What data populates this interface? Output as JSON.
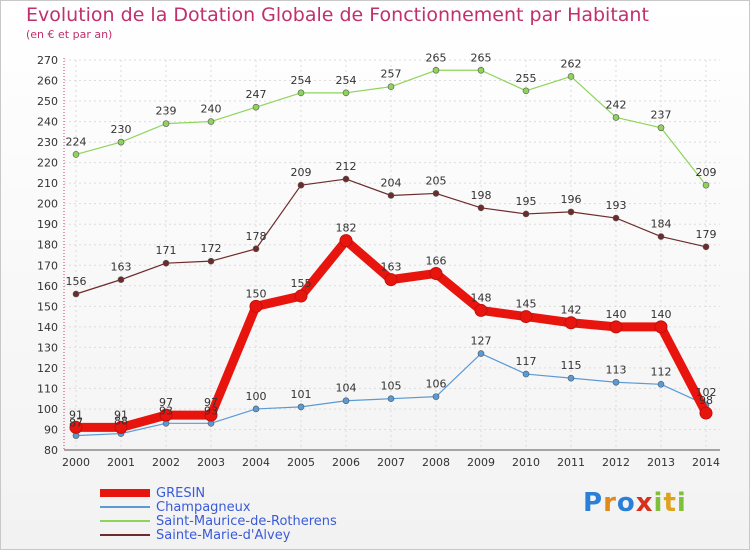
{
  "header": {
    "title": "Evolution de la Dotation Globale de Fonctionnement par Habitant",
    "subtitle": "(en € et par an)"
  },
  "logo": {
    "text": "Proxiti"
  },
  "chart_data": {
    "type": "line",
    "x": [
      "2000",
      "2001",
      "2002",
      "2003",
      "2004",
      "2005",
      "2006",
      "2007",
      "2008",
      "2009",
      "2010",
      "2011",
      "2012",
      "2013",
      "2014"
    ],
    "ylim": [
      80,
      270
    ],
    "yticks": [
      80,
      90,
      100,
      110,
      120,
      130,
      140,
      150,
      160,
      170,
      180,
      190,
      200,
      210,
      220,
      230,
      240,
      250,
      260,
      270
    ],
    "grid": true,
    "legend_position": "bottom-left",
    "series": [
      {
        "name": "GRESIN",
        "color": "#e8150f",
        "values": [
          91,
          91,
          97,
          97,
          150,
          155,
          182,
          163,
          166,
          148,
          145,
          142,
          140,
          140,
          98
        ],
        "labels": [
          "91",
          "91",
          "97",
          "97",
          "150",
          "155",
          "182",
          "163",
          "166",
          "148",
          "145",
          "142",
          "140",
          "140",
          "98"
        ]
      },
      {
        "name": "Champagneux",
        "color": "#5a9bd5",
        "values": [
          87,
          88,
          93,
          93,
          100,
          101,
          104,
          105,
          106,
          127,
          117,
          115,
          113,
          112,
          102
        ],
        "labels": [
          "87",
          "88",
          "93",
          "93",
          "100",
          "101",
          "104",
          "105",
          "106",
          "127",
          "117",
          "115",
          "113",
          "112",
          "102"
        ]
      },
      {
        "name": "Saint-Maurice-de-Rotherens",
        "color": "#8fd45a",
        "values": [
          224,
          230,
          239,
          240,
          247,
          254,
          254,
          257,
          265,
          265,
          255,
          262,
          242,
          237,
          209
        ],
        "labels": [
          "224",
          "230",
          "239",
          "240",
          "247",
          "254",
          "254",
          "257",
          "265",
          "265",
          "255",
          "262",
          "242",
          "237",
          "209"
        ]
      },
      {
        "name": "Sainte-Marie-d'Alvey",
        "color": "#6e2b2b",
        "values": [
          156,
          163,
          171,
          172,
          178,
          209,
          212,
          204,
          205,
          198,
          195,
          196,
          193,
          184,
          179
        ],
        "labels": [
          "156",
          "163",
          "171",
          "172",
          "178",
          "209",
          "212",
          "204",
          "205",
          "198",
          "195",
          "196",
          "193",
          "184",
          "179"
        ]
      }
    ]
  }
}
